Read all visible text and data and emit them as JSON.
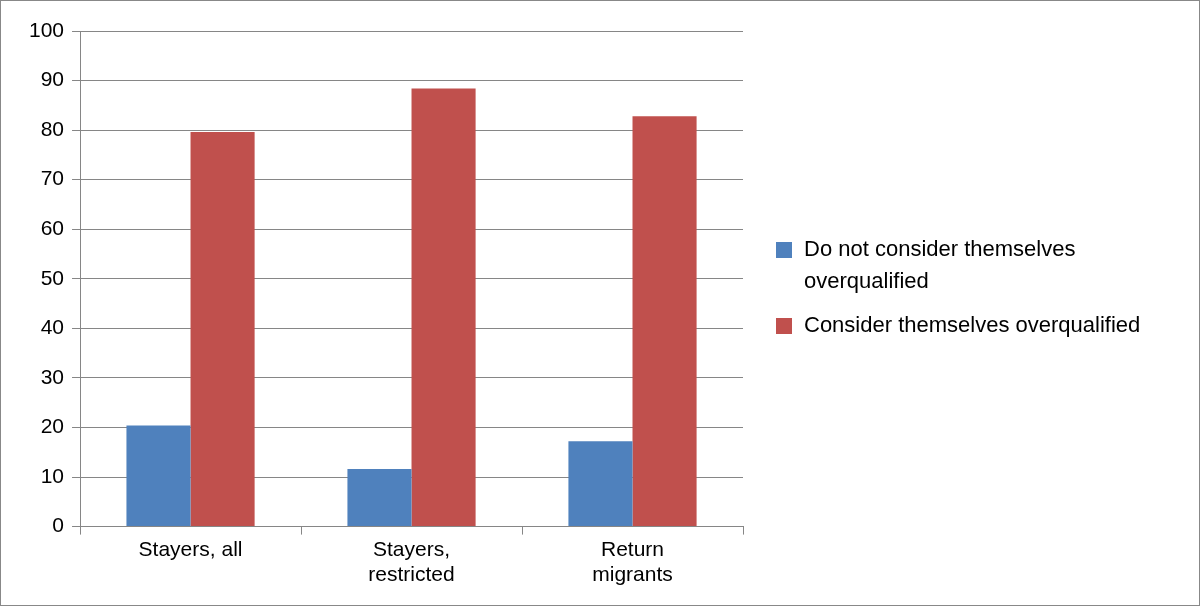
{
  "chart_data": {
    "type": "bar",
    "categories": [
      "Stayers, all",
      "Stayers, restricted",
      "Return migrants"
    ],
    "series": [
      {
        "name": "Do not consider themselves overqualified",
        "color": "#4f81bd",
        "values": [
          20.4,
          11.6,
          17.2
        ]
      },
      {
        "name": "Consider themselves overqualified",
        "color": "#c0504d",
        "values": [
          79.6,
          88.4,
          82.8
        ]
      }
    ],
    "ylim": [
      0,
      100
    ],
    "yticks": [
      0,
      10,
      20,
      30,
      40,
      50,
      60,
      70,
      80,
      90,
      100
    ],
    "grid": "y",
    "legend": "right"
  }
}
